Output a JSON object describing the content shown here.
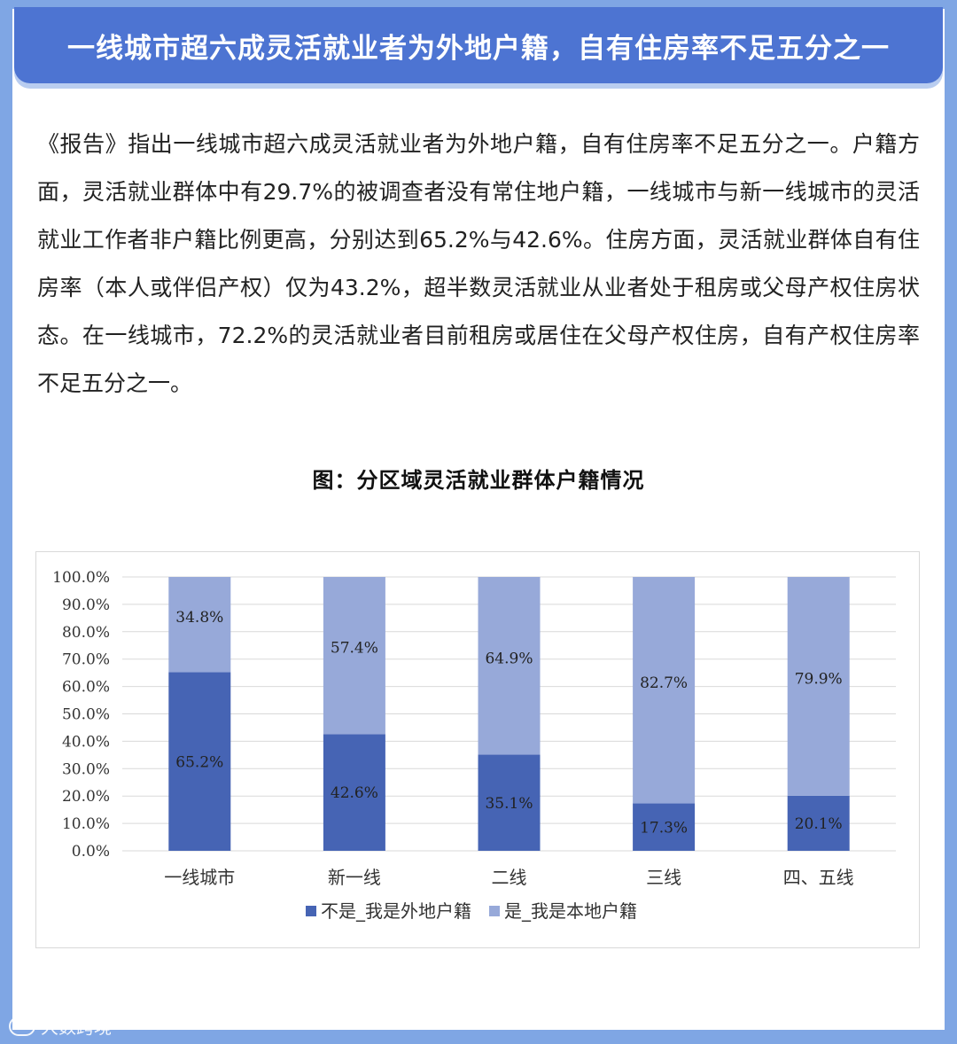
{
  "header": {
    "title": "一线城市超六成灵活就业者为外地户籍，自有住房率不足五分之一"
  },
  "article": {
    "paragraph": "《报告》指出一线城市超六成灵活就业者为外地户籍，自有住房率不足五分之一。户籍方面，灵活就业群体中有29.7%的被调查者没有常住地户籍，一线城市与新一线城市的灵活就业工作者非户籍比例更高，分别达到65.2%与42.6%。住房方面，灵活就业群体自有住房率（本人或伴侣产权）仅为43.2%，超半数灵活就业从业者处于租房或父母产权住房状态。在一线城市，72.2%的灵活就业者目前租房或居住在父母产权住房，自有产权住房率不足五分之一。"
  },
  "figure": {
    "title": "图：分区域灵活就业群体户籍情况"
  },
  "watermark": {
    "text": "大数跨境"
  },
  "chart_data": {
    "type": "bar",
    "stacked": true,
    "categories": [
      "一线城市",
      "新一线",
      "二线",
      "三线",
      "四、五线"
    ],
    "series": [
      {
        "name": "不是_我是外地户籍",
        "color": "#4664b4",
        "values": [
          65.2,
          42.6,
          35.1,
          17.3,
          20.1
        ]
      },
      {
        "name": "是_我是本地户籍",
        "color": "#97a9d9",
        "values": [
          34.8,
          57.4,
          64.9,
          82.7,
          79.9
        ]
      }
    ],
    "yticks": [
      "0.0%",
      "10.0%",
      "20.0%",
      "30.0%",
      "40.0%",
      "50.0%",
      "60.0%",
      "70.0%",
      "80.0%",
      "90.0%",
      "100.0%"
    ],
    "ylim": [
      0,
      100
    ],
    "grid": true,
    "legend_position": "bottom",
    "data_labels": true
  }
}
